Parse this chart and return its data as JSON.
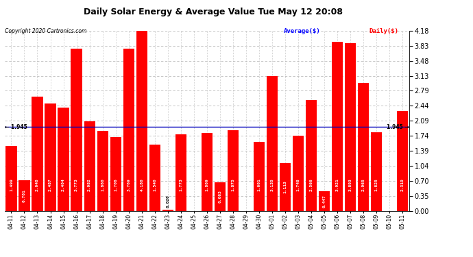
{
  "title": "Daily Solar Energy & Average Value Tue May 12 20:08",
  "copyright": "Copyright 2020 Cartronics.com",
  "legend_average": "Average($)",
  "legend_daily": "Daily($)",
  "average_value": 1.945,
  "categories": [
    "04-11",
    "04-12",
    "04-13",
    "04-14",
    "04-15",
    "04-16",
    "04-17",
    "04-18",
    "04-19",
    "04-20",
    "04-21",
    "04-22",
    "04-23",
    "04-24",
    "04-25",
    "04-26",
    "04-27",
    "04-28",
    "04-29",
    "04-30",
    "05-01",
    "05-02",
    "05-03",
    "05-04",
    "05-05",
    "05-06",
    "05-07",
    "05-08",
    "05-09",
    "05-10",
    "05-11"
  ],
  "values": [
    1.499,
    0.701,
    2.648,
    2.487,
    2.404,
    3.773,
    2.082,
    1.86,
    1.706,
    3.769,
    4.18,
    1.54,
    0.02,
    1.773,
    0.0,
    1.809,
    0.663,
    1.875,
    0.0,
    1.601,
    3.135,
    1.113,
    1.748,
    2.566,
    0.447,
    3.921,
    3.893,
    2.965,
    1.825,
    0.0,
    2.319
  ],
  "bar_color": "#ff0000",
  "avg_line_color": "#0000bb",
  "background_color": "#ffffff",
  "title_color": "#000000",
  "copyright_color": "#000000",
  "legend_avg_color": "#0000ff",
  "legend_daily_color": "#ff0000",
  "value_label_color": "#ffffff",
  "avg_label_color": "#000000",
  "grid_color": "#bbbbbb",
  "ylim": [
    0.0,
    4.18
  ],
  "yticks": [
    0.0,
    0.35,
    0.7,
    1.04,
    1.39,
    1.74,
    2.09,
    2.44,
    2.79,
    3.13,
    3.48,
    3.83,
    4.18
  ],
  "avg_label_left": "← 1.945",
  "avg_label_right": "1.945 →"
}
